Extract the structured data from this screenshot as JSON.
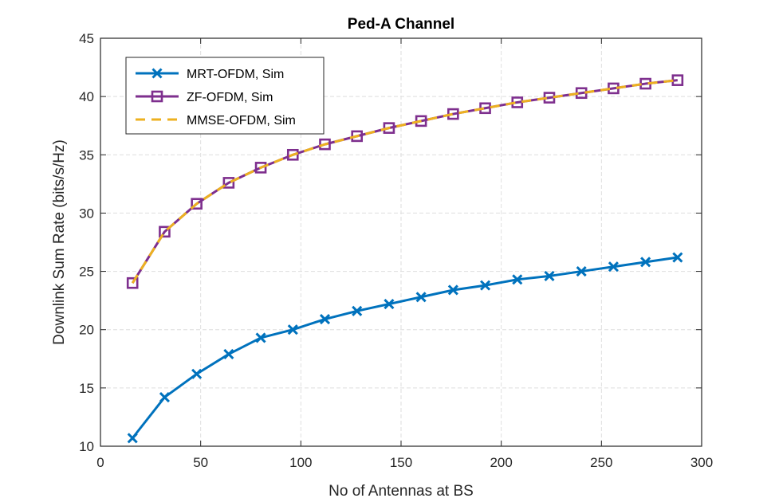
{
  "chart_data": {
    "type": "line",
    "title": "Ped-A Channel",
    "xlabel": "No of Antennas at BS",
    "ylabel": "Downlink Sum Rate (bits/s/Hz)",
    "xlim": [
      0,
      300
    ],
    "ylim": [
      10,
      45
    ],
    "xticks": [
      0,
      50,
      100,
      150,
      200,
      250,
      300
    ],
    "yticks": [
      10,
      15,
      20,
      25,
      30,
      35,
      40,
      45
    ],
    "grid": true,
    "legend_position": "top-left",
    "x": [
      16,
      32,
      48,
      64,
      80,
      96,
      112,
      128,
      144,
      160,
      176,
      192,
      208,
      224,
      240,
      256,
      272,
      288
    ],
    "series": [
      {
        "name": "MRT-OFDM, Sim",
        "color": "#0072BD",
        "marker": "x",
        "dash": "solid",
        "values": [
          10.7,
          14.2,
          16.2,
          17.9,
          19.3,
          20.0,
          20.9,
          21.6,
          22.2,
          22.8,
          23.4,
          23.8,
          24.3,
          24.6,
          25.0,
          25.4,
          25.8,
          26.2
        ]
      },
      {
        "name": "ZF-OFDM, Sim",
        "color": "#7E2F8E",
        "marker": "square",
        "dash": "solid",
        "values": [
          24.0,
          28.4,
          30.8,
          32.6,
          33.9,
          35.0,
          35.9,
          36.6,
          37.3,
          37.9,
          38.5,
          39.0,
          39.5,
          39.9,
          40.3,
          40.7,
          41.1,
          41.4
        ]
      },
      {
        "name": "MMSE-OFDM, Sim",
        "color": "#EDB120",
        "marker": "none",
        "dash": "dashed",
        "values": [
          24.0,
          28.4,
          30.8,
          32.6,
          33.9,
          35.0,
          35.9,
          36.6,
          37.3,
          37.9,
          38.5,
          39.0,
          39.5,
          39.9,
          40.3,
          40.7,
          41.1,
          41.4
        ]
      }
    ]
  }
}
